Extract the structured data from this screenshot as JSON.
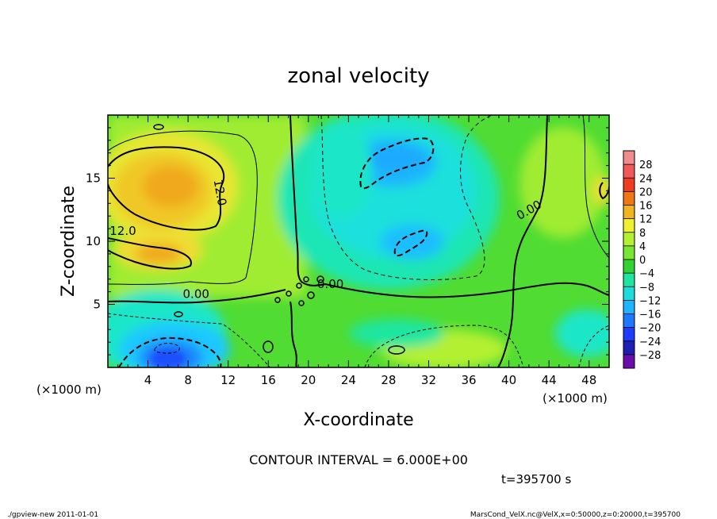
{
  "chart_data": {
    "type": "heatmap",
    "title": "zonal velocity",
    "xlabel": "X-coordinate",
    "ylabel": "Z-coordinate",
    "x_unit_label": "(×1000 m)",
    "y_unit_label": "(×1000 m)",
    "xlim": [
      0,
      50
    ],
    "ylim": [
      0,
      20
    ],
    "x_ticks": [
      4,
      8,
      12,
      16,
      20,
      24,
      28,
      32,
      36,
      40,
      44,
      48
    ],
    "y_ticks": [
      5,
      10,
      15
    ],
    "colorbar": {
      "levels": [
        -28,
        -24,
        -20,
        -16,
        -12,
        -8,
        -4,
        0,
        4,
        8,
        12,
        16,
        20,
        24,
        28
      ],
      "labels": [
        "−28",
        "−24",
        "−20",
        "−16",
        "−12",
        "−8",
        "−4",
        "0",
        "4",
        "8",
        "12",
        "16",
        "20",
        "24",
        "28"
      ],
      "colors": [
        "#6a0dad",
        "#1f1fb4",
        "#1e3cff",
        "#1e78ff",
        "#1eb4ff",
        "#1edcdc",
        "#1ee6a0",
        "#32d232",
        "#78e632",
        "#b4f032",
        "#f0f032",
        "#f0b41e",
        "#f07814",
        "#f03c1e",
        "#f05a5a",
        "#f08c8c"
      ]
    },
    "contour_labels": [
      {
        "text": "12.0",
        "x": 10.8,
        "z": 13.8,
        "rotate": 80
      },
      {
        "text": "12.0",
        "x": 1.5,
        "z": 10.5,
        "rotate": 0
      },
      {
        "text": "0.00",
        "x": 8.8,
        "z": 5.5,
        "rotate": 0
      },
      {
        "text": "0.00",
        "x": 22.2,
        "z": 6.3,
        "rotate": 0
      },
      {
        "text": "0.00",
        "x": 42.2,
        "z": 12.2,
        "rotate": -30
      }
    ],
    "contour_interval_text": "CONTOUR INTERVAL = 6.000E+00",
    "time_text": "t=395700 s"
  },
  "footer": {
    "left": "./gpview-new   2011-01-01",
    "right": "MarsCond_VelX.nc@VelX,x=0:50000,z=0:20000,t=395700"
  }
}
